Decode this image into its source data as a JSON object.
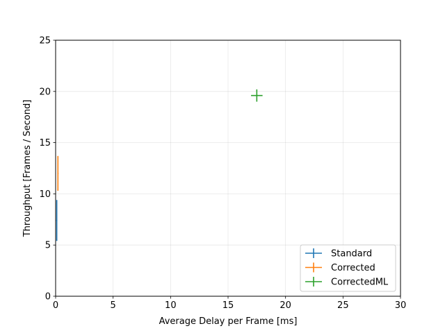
{
  "chart_data": {
    "type": "scatter",
    "title": "",
    "xlabel": "Average Delay per Frame [ms]",
    "ylabel": "Throughput [Frames / Second]",
    "xlim": [
      0,
      30
    ],
    "ylim": [
      0,
      25
    ],
    "xticks": [
      0,
      5,
      10,
      15,
      20,
      25,
      30
    ],
    "yticks": [
      0,
      5,
      10,
      15,
      20,
      25
    ],
    "grid": true,
    "legend_position": "lower-right",
    "series": [
      {
        "name": "Standard",
        "color": "#1f77b4",
        "points": [
          {
            "x": 0.1,
            "y": 7.4,
            "xerr": 0.05,
            "yerr": 2.0
          }
        ]
      },
      {
        "name": "Corrected",
        "color": "#ff7f0e",
        "points": [
          {
            "x": 0.2,
            "y": 12.0,
            "xerr": 0.05,
            "yerr": 1.7
          }
        ]
      },
      {
        "name": "CorrectedML",
        "color": "#2ca02c",
        "points": [
          {
            "x": 17.5,
            "y": 19.6,
            "xerr": 0.5,
            "yerr": 0.6
          }
        ]
      }
    ]
  }
}
